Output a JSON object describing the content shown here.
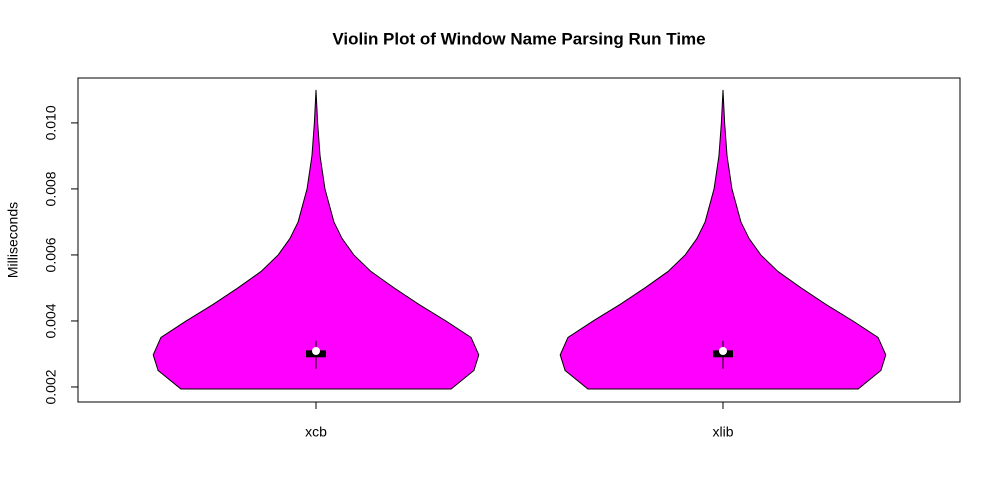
{
  "chart_data": {
    "type": "violin",
    "title": "Violin Plot of Window Name Parsing Run Time",
    "y_label": "Milliseconds",
    "categories": [
      "xcb",
      "xlib"
    ],
    "ylim": [
      0.001545,
      0.01136
    ],
    "yticks": [
      0.002,
      0.004,
      0.006,
      0.008,
      {
        "value": 0.01,
        "label": "0.010"
      }
    ],
    "series": [
      {
        "name": "xcb",
        "color": "#ff00ff",
        "density_y": [
          0.00194,
          0.0025,
          0.00297,
          0.0035,
          0.004,
          0.0045,
          0.005,
          0.0055,
          0.006,
          0.0065,
          0.007,
          0.008,
          0.009,
          0.01,
          0.011
        ],
        "density_halfwidth": [
          0.332,
          0.388,
          0.4,
          0.381,
          0.319,
          0.253,
          0.192,
          0.135,
          0.093,
          0.064,
          0.044,
          0.022,
          0.01,
          0.004,
          0
        ],
        "min": 0.00255,
        "q1": 0.0029,
        "median": 0.00309,
        "q3": 0.00311,
        "max": 0.0034
      },
      {
        "name": "xlib",
        "color": "#ff00ff",
        "density_y": [
          0.00194,
          0.0025,
          0.00297,
          0.0035,
          0.004,
          0.0045,
          0.005,
          0.0055,
          0.006,
          0.0065,
          0.007,
          0.008,
          0.009,
          0.01,
          0.011
        ],
        "density_halfwidth": [
          0.332,
          0.388,
          0.4,
          0.381,
          0.319,
          0.253,
          0.192,
          0.135,
          0.093,
          0.064,
          0.044,
          0.022,
          0.01,
          0.004,
          0
        ],
        "min": 0.00255,
        "q1": 0.0029,
        "median": 0.00309,
        "q3": 0.00311,
        "max": 0.0034
      }
    ]
  }
}
